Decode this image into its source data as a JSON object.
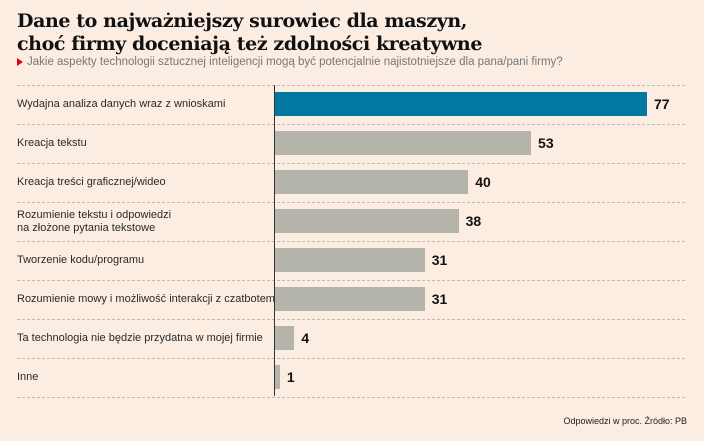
{
  "chart_data": {
    "type": "bar",
    "orientation": "horizontal",
    "title": "Dane to najważniejszy surowiec dla maszyn, choć firmy doceniają też zdolności kreatywne",
    "title_lines": [
      "Dane to najważniejszy surowiec dla maszyn,",
      "choć firmy doceniają też zdolności kreatywne"
    ],
    "subtitle": "Jakie aspekty technologii sztucznej inteligencji mogą być potencjalnie najistotniejsze dla pana/pani firmy?",
    "categories": [
      [
        "Wydajna analiza danych wraz z wnioskami"
      ],
      [
        "Kreacja tekstu"
      ],
      [
        "Kreacja treści graficznej/wideo"
      ],
      [
        "Rozumienie tekstu i odpowiedzi",
        "na złożone pytania tekstowe"
      ],
      [
        "Tworzenie kodu/programu"
      ],
      [
        "Rozumienie mowy i możliwość interakcji z czatbotem"
      ],
      [
        "Ta technologia nie będzie przydatna w mojej firmie"
      ],
      [
        "Inne"
      ]
    ],
    "values": [
      77,
      53,
      40,
      38,
      31,
      31,
      4,
      1
    ],
    "highlight_index": 0,
    "colors": {
      "highlight": "#00789f",
      "default": "#b5b4aa"
    },
    "xlim": [
      0,
      77
    ],
    "grid": false,
    "footer": "Odpowiedzi w proc. Źródło: PB"
  }
}
